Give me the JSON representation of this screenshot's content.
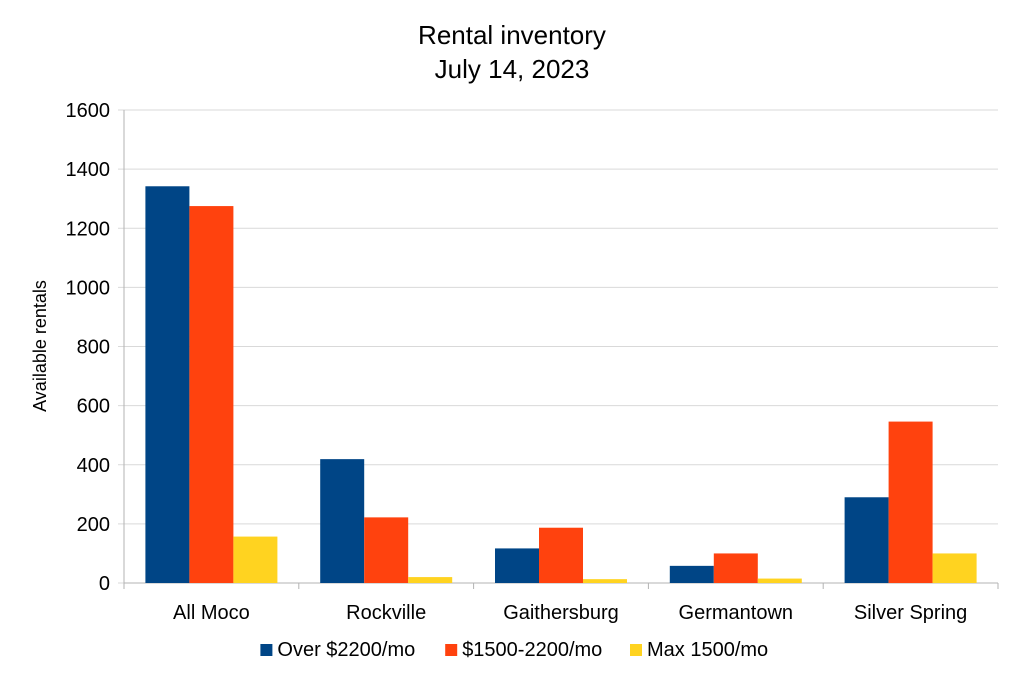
{
  "chart_data": {
    "type": "bar",
    "title": "Rental inventory",
    "subtitle": "July 14, 2023",
    "xlabel": "",
    "ylabel": "Available rentals",
    "ylim": [
      0,
      1600
    ],
    "yticks": [
      0,
      200,
      400,
      600,
      800,
      1000,
      1200,
      1400,
      1600
    ],
    "grid": true,
    "legend_position": "bottom",
    "categories": [
      "All Moco",
      "Rockville",
      "Gaithersburg",
      "Germantown",
      "Silver Spring"
    ],
    "series": [
      {
        "name": "Over $2200/mo",
        "color": "#004586",
        "values": [
          1342,
          419,
          117,
          58,
          290
        ]
      },
      {
        "name": "$1500-2200/mo",
        "color": "#ff420e",
        "values": [
          1275,
          222,
          187,
          100,
          546
        ]
      },
      {
        "name": "Max 1500/mo",
        "color": "#ffd320",
        "values": [
          157,
          20,
          13,
          15,
          100
        ]
      }
    ]
  }
}
